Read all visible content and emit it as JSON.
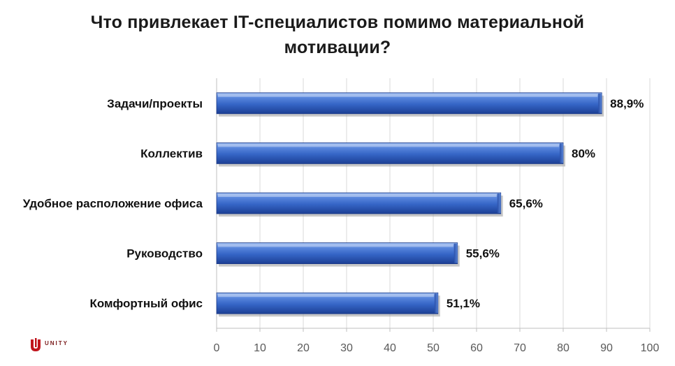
{
  "title_line1": "Что привлекает  IT-специалистов  помимо материальной",
  "title_line2": "мотивации?",
  "logo": {
    "text": "UNITY",
    "brand_color": "#c0141c"
  },
  "chart_data": {
    "type": "bar",
    "orientation": "horizontal",
    "categories": [
      "Задачи/проекты",
      "Коллектив",
      "Удобное расположение офиса",
      "Руководство",
      "Комфортный офис"
    ],
    "values": [
      88.9,
      80,
      65.6,
      55.6,
      51.1
    ],
    "value_labels": [
      "88,9%",
      "80%",
      "65,6%",
      "55,6%",
      "51,1%"
    ],
    "xlim": [
      0,
      100
    ],
    "x_ticks": [
      0,
      10,
      20,
      30,
      40,
      50,
      60,
      70,
      80,
      90,
      100
    ],
    "grid": true,
    "bar_color": "#3a68c8"
  }
}
